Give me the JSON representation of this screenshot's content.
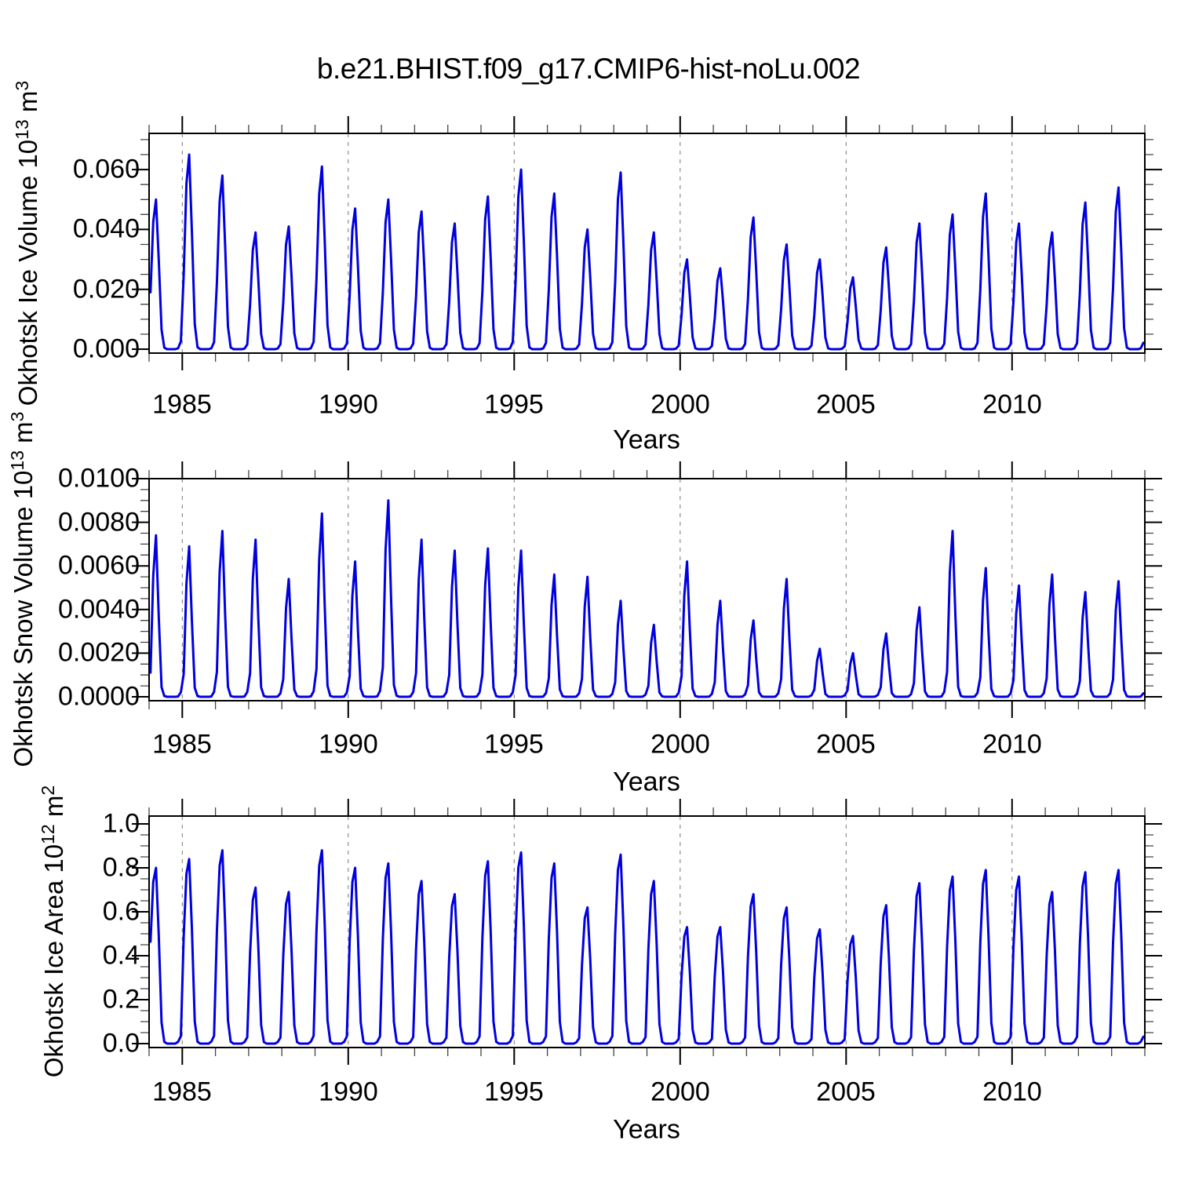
{
  "title": "b.e21.BHIST.f09_g17.CMIP6-hist-noLu.002",
  "line_color": "#0000e0",
  "grid_color": "#787878",
  "chart_data": [
    {
      "type": "line",
      "name": "okhotsk-ice-volume",
      "ylabel_text": "Okhotsk Ice Volume 10^13 m^3",
      "ylabel_parts": {
        "base": "Okhotsk Ice Volume 10",
        "exp": "13",
        "unit": " m",
        "unit_exp": "3"
      },
      "xlabel": "Years",
      "x_resolution": "monthly",
      "peak_month": "March",
      "x_years": [
        1984,
        1985,
        1986,
        1987,
        1988,
        1989,
        1990,
        1991,
        1992,
        1993,
        1994,
        1995,
        1996,
        1997,
        1998,
        1999,
        2000,
        2001,
        2002,
        2003,
        2004,
        2005,
        2006,
        2007,
        2008,
        2009,
        2010,
        2011,
        2012,
        2013
      ],
      "annual_peak_values": [
        0.05,
        0.065,
        0.058,
        0.039,
        0.041,
        0.061,
        0.047,
        0.05,
        0.046,
        0.042,
        0.051,
        0.06,
        0.052,
        0.04,
        0.059,
        0.039,
        0.03,
        0.027,
        0.044,
        0.035,
        0.03,
        0.024,
        0.034,
        0.042,
        0.045,
        0.052,
        0.042,
        0.039,
        0.049,
        0.054
      ],
      "monthly_profile_fraction_of_peak": [
        0.38,
        0.85,
        1.0,
        0.6,
        0.13,
        0.01,
        0,
        0,
        0,
        0,
        0.005,
        0.04
      ],
      "xlim": [
        1984,
        2014
      ],
      "ylim": [
        0,
        0.072
      ],
      "xticks_major": [
        1985,
        1990,
        1995,
        2000,
        2005,
        2010
      ],
      "xtick_labels": [
        "1985",
        "1990",
        "1995",
        "2000",
        "2005",
        "2010"
      ],
      "xticks_minor_step_years": 1,
      "yticks_major": [
        0,
        0.02,
        0.04,
        0.06
      ],
      "ytick_labels": [
        "0.000",
        "0.020",
        "0.040",
        "0.060"
      ],
      "yticks_minor_step": 0.005,
      "grid": "vertical-dashed-at-major-years",
      "legend": "none"
    },
    {
      "type": "line",
      "name": "okhotsk-snow-volume",
      "ylabel_text": "Okhotsk Snow Volume 10^13 m^3",
      "ylabel_parts": {
        "base": "Okhotsk Snow Volume 10",
        "exp": "13",
        "unit": " m",
        "unit_exp": "3"
      },
      "xlabel": "Years",
      "x_resolution": "monthly",
      "peak_month": "March",
      "x_years": [
        1984,
        1985,
        1986,
        1987,
        1988,
        1989,
        1990,
        1991,
        1992,
        1993,
        1994,
        1995,
        1996,
        1997,
        1998,
        1999,
        2000,
        2001,
        2002,
        2003,
        2004,
        2005,
        2006,
        2007,
        2008,
        2009,
        2010,
        2011,
        2012,
        2013
      ],
      "annual_peak_values": [
        0.0074,
        0.0069,
        0.0076,
        0.0072,
        0.0054,
        0.0084,
        0.0062,
        0.009,
        0.0072,
        0.0067,
        0.0068,
        0.0067,
        0.0056,
        0.0055,
        0.0044,
        0.0033,
        0.0062,
        0.0044,
        0.0035,
        0.0054,
        0.0022,
        0.002,
        0.0029,
        0.0041,
        0.0076,
        0.0059,
        0.0051,
        0.0056,
        0.0048,
        0.0053
      ],
      "monthly_profile_fraction_of_peak": [
        0.15,
        0.75,
        1.0,
        0.5,
        0.06,
        0.005,
        0,
        0,
        0,
        0,
        0.002,
        0.03
      ],
      "xlim": [
        1984,
        2014
      ],
      "ylim": [
        0,
        0.01
      ],
      "xticks_major": [
        1985,
        1990,
        1995,
        2000,
        2005,
        2010
      ],
      "xtick_labels": [
        "1985",
        "1990",
        "1995",
        "2000",
        "2005",
        "2010"
      ],
      "xticks_minor_step_years": 1,
      "yticks_major": [
        0,
        0.002,
        0.004,
        0.006,
        0.008,
        0.01
      ],
      "ytick_labels": [
        "0.0000",
        "0.0020",
        "0.0040",
        "0.0060",
        "0.0080",
        "0.0100"
      ],
      "yticks_minor_step": 0.0005,
      "grid": "vertical-dashed-at-major-years",
      "legend": "none"
    },
    {
      "type": "line",
      "name": "okhotsk-ice-area",
      "ylabel_text": "Okhotsk Ice Area 10^12 m^2",
      "ylabel_parts": {
        "base": "Okhotsk Ice Area 10",
        "exp": "12",
        "unit": " m",
        "unit_exp": "2"
      },
      "xlabel": "Years",
      "x_resolution": "monthly",
      "peak_month": "March",
      "x_years": [
        1984,
        1985,
        1986,
        1987,
        1988,
        1989,
        1990,
        1991,
        1992,
        1993,
        1994,
        1995,
        1996,
        1997,
        1998,
        1999,
        2000,
        2001,
        2002,
        2003,
        2004,
        2005,
        2006,
        2007,
        2008,
        2009,
        2010,
        2011,
        2012,
        2013
      ],
      "annual_peak_values": [
        0.8,
        0.84,
        0.88,
        0.71,
        0.69,
        0.88,
        0.8,
        0.82,
        0.74,
        0.68,
        0.83,
        0.87,
        0.82,
        0.62,
        0.86,
        0.74,
        0.53,
        0.53,
        0.68,
        0.62,
        0.52,
        0.49,
        0.63,
        0.73,
        0.76,
        0.79,
        0.76,
        0.69,
        0.78,
        0.79
      ],
      "monthly_profile_fraction_of_peak": [
        0.58,
        0.92,
        1.0,
        0.62,
        0.12,
        0.01,
        0,
        0,
        0,
        0,
        0.01,
        0.04
      ],
      "xlim": [
        1984,
        2014
      ],
      "ylim": [
        0,
        1.04
      ],
      "xticks_major": [
        1985,
        1990,
        1995,
        2000,
        2005,
        2010
      ],
      "xtick_labels": [
        "1985",
        "1990",
        "1995",
        "2000",
        "2005",
        "2010"
      ],
      "xticks_minor_step_years": 1,
      "yticks_major": [
        0,
        0.2,
        0.4,
        0.6,
        0.8,
        1.0
      ],
      "ytick_labels": [
        "0.0",
        "0.2",
        "0.4",
        "0.6",
        "0.8",
        "1.0"
      ],
      "yticks_minor_step": 0.05,
      "grid": "vertical-dashed-at-major-years",
      "legend": "none"
    }
  ]
}
